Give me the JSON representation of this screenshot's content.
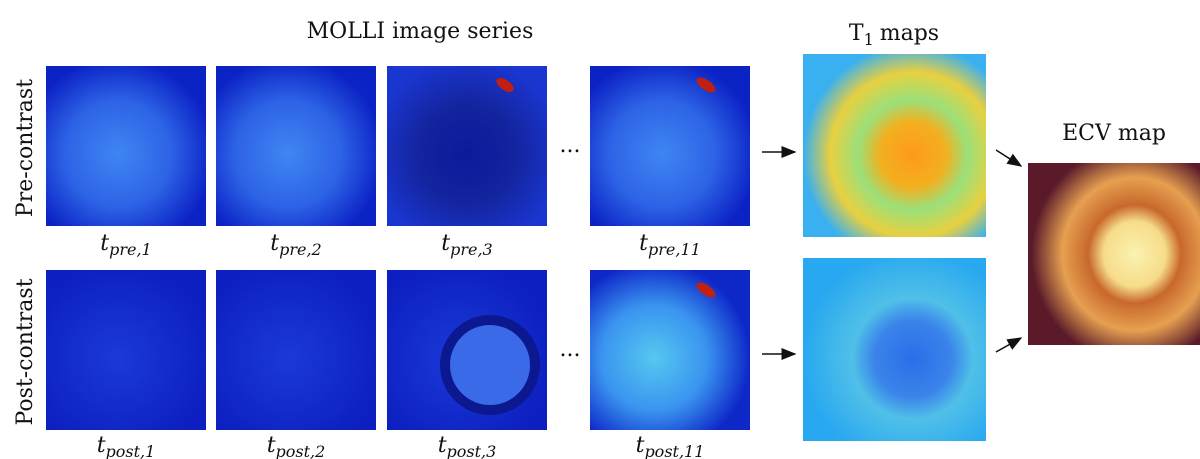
{
  "title": "MOLLI image series",
  "t1_title": {
    "base": "T",
    "sub": "1",
    "rest": "maps"
  },
  "ecv_title": "ECV map",
  "rows": [
    {
      "label": "Pre-contrast",
      "ellipsis": "...",
      "frames": [
        {
          "base": "t",
          "sub": "pre,1"
        },
        {
          "base": "t",
          "sub": "pre,2"
        },
        {
          "base": "t",
          "sub": "pre,3"
        },
        {
          "base": "t",
          "sub": "pre,11"
        }
      ]
    },
    {
      "label": "Post-contrast",
      "ellipsis": "...",
      "frames": [
        {
          "base": "t",
          "sub": "post,1"
        },
        {
          "base": "t",
          "sub": "post,2"
        },
        {
          "base": "t",
          "sub": "post,3"
        },
        {
          "base": "t",
          "sub": "post,11"
        }
      ]
    }
  ]
}
